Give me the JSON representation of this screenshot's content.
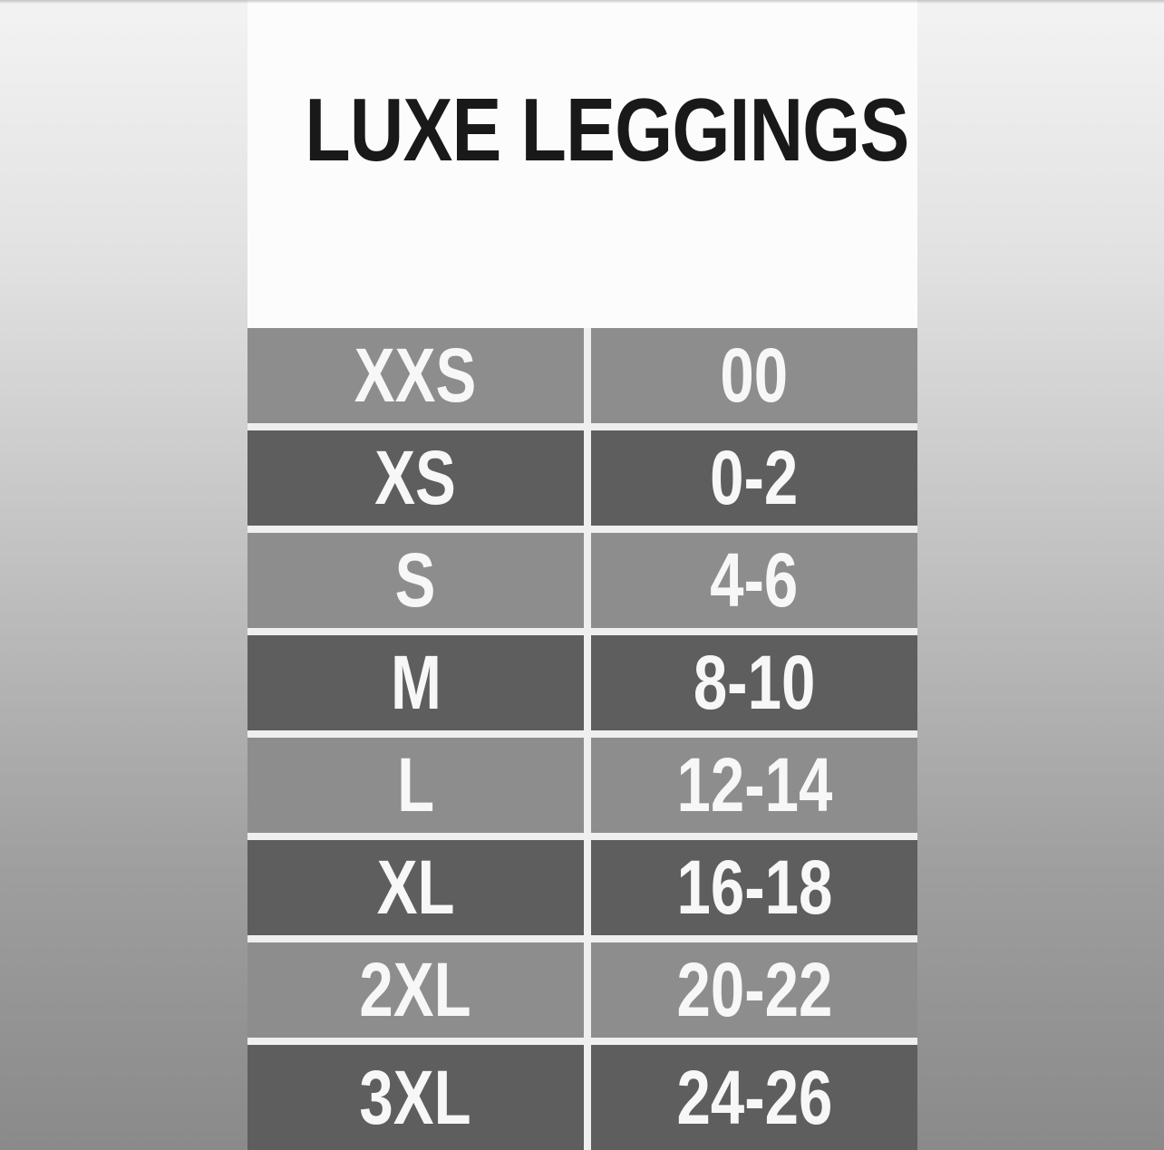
{
  "chart_data": {
    "type": "table",
    "title": "LUXE LEGGINGS",
    "rows": [
      [
        "XXS",
        "00"
      ],
      [
        "XS",
        "0-2"
      ],
      [
        "S",
        "4-6"
      ],
      [
        "M",
        "8-10"
      ],
      [
        "L",
        "12-14"
      ],
      [
        "XL",
        "16-18"
      ],
      [
        "2XL",
        "20-22"
      ],
      [
        "3XL",
        "24-26"
      ]
    ],
    "layout": {
      "columns": 2,
      "headers_visible": false,
      "alternating_row_shading": true,
      "first_row_shade": "light",
      "last_row_clipped_at_bottom": true
    }
  },
  "colors": {
    "bg_top": "#f3f3f3",
    "bg_bottom": "#8a8a8a",
    "panel": "#fcfcfc",
    "row_light": "#8d8d8d",
    "row_dark": "#5e5e5e",
    "divider": "#efefef",
    "cell_text": "#f7f7f7",
    "title_text": "#191919"
  }
}
